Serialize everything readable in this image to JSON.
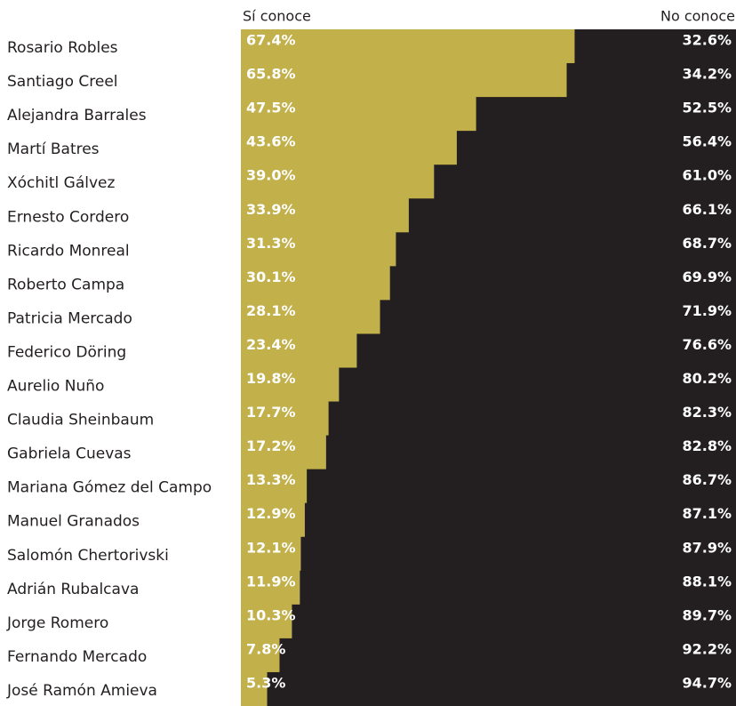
{
  "chart_data": {
    "type": "bar",
    "orientation": "horizontal",
    "stacked": true,
    "categories": [
      "Rosario Robles",
      "Santiago Creel",
      "Alejandra Barrales",
      "Martí Batres",
      "Xóchitl Gálvez",
      "Ernesto Cordero",
      "Ricardo Monreal",
      "Roberto Campa",
      "Patricia Mercado",
      "Federico Döring",
      "Aurelio Nuño",
      "Claudia Sheinbaum",
      "Gabriela Cuevas",
      "Mariana Gómez del Campo",
      "Manuel Granados",
      "Salomón Chertorivski",
      "Adrián Rubalcava",
      "Jorge Romero",
      "Fernando Mercado",
      "José Ramón Amieva"
    ],
    "series": [
      {
        "name": "Sí conoce",
        "color": "#c2b04a",
        "values": [
          67.4,
          65.8,
          47.5,
          43.6,
          39.0,
          33.9,
          31.3,
          30.1,
          28.1,
          23.4,
          19.8,
          17.7,
          17.2,
          13.3,
          12.9,
          12.1,
          11.9,
          10.3,
          7.8,
          5.3
        ],
        "value_labels": [
          "67.4%",
          "65.8%",
          "47.5%",
          "43.6%",
          "39.0%",
          "33.9%",
          "31.3%",
          "30.1%",
          "28.1%",
          "23.4%",
          "19.8%",
          "17.7%",
          "17.2%",
          "13.3%",
          "12.9%",
          "12.1%",
          "11.9%",
          "10.3%",
          "7.8%",
          "5.3%"
        ]
      },
      {
        "name": "No conoce",
        "color": "#231f20",
        "values": [
          32.6,
          34.2,
          52.5,
          56.4,
          61.0,
          66.1,
          68.7,
          69.9,
          71.9,
          76.6,
          80.2,
          82.3,
          82.8,
          86.7,
          87.1,
          87.9,
          88.1,
          89.7,
          92.2,
          94.7
        ],
        "value_labels": [
          "32.6%",
          "34.2%",
          "52.5%",
          "56.4%",
          "61.0%",
          "66.1%",
          "68.7%",
          "69.9%",
          "71.9%",
          "76.6%",
          "80.2%",
          "82.3%",
          "82.8%",
          "86.7%",
          "87.1%",
          "87.9%",
          "88.1%",
          "89.7%",
          "92.2%",
          "94.7%"
        ]
      }
    ],
    "xlim": [
      0,
      100
    ]
  }
}
